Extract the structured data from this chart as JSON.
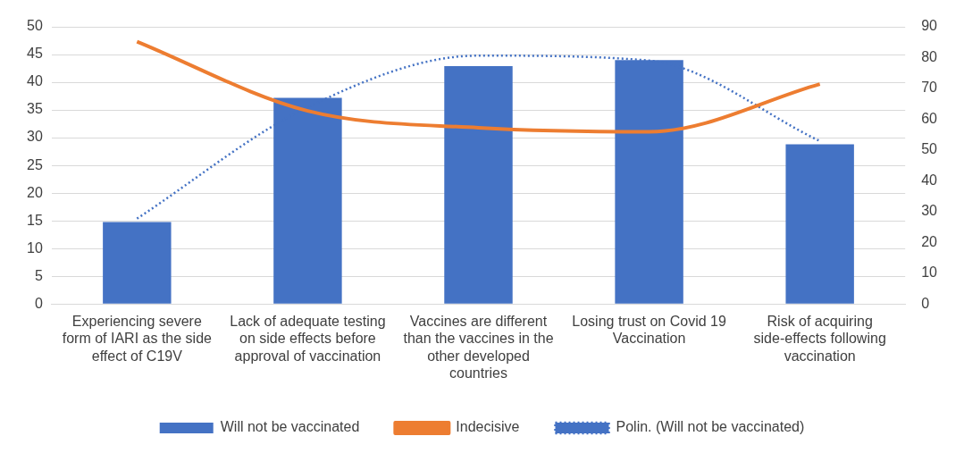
{
  "chart_data": {
    "type": "bar",
    "categories": [
      "Experiencing severe form of IARI as the side effect of C19V",
      "Lack of adequate testing on side effects before approval of vaccination",
      "Vaccines are different than the vaccines in the other developed countries",
      "Losing trust on Covid 19 Vaccination",
      "Risk of acquiring side-effects following vaccination"
    ],
    "series": [
      {
        "name": "Will not be vaccinated",
        "color": "#4472c4",
        "values": [
          14.8,
          37.2,
          42.9,
          44.0,
          28.8
        ]
      },
      {
        "name": "Indecisive",
        "type": "line",
        "axis": "y2",
        "color": "#ed7d31",
        "line_style": "solid",
        "marker": "none",
        "values": [
          85.2,
          62.7,
          57.2,
          55.9,
          71.4
        ]
      },
      {
        "name": "Polin. (Will not be vaccinated)",
        "type": "line",
        "color": "#4472c4",
        "line_style": "dotted",
        "marker": "none",
        "values": [
          15.4,
          35.5,
          44.8,
          43.9,
          29.4
        ]
      }
    ],
    "ylim": [
      0,
      50
    ],
    "yticks": [
      0,
      5,
      10,
      15,
      20,
      25,
      30,
      35,
      40,
      45,
      50
    ],
    "y2lim": [
      0,
      90
    ],
    "y2ticks": [
      0,
      10,
      20,
      30,
      40,
      50,
      60,
      70,
      80,
      90
    ],
    "grid": "y",
    "legend": "bottom"
  }
}
